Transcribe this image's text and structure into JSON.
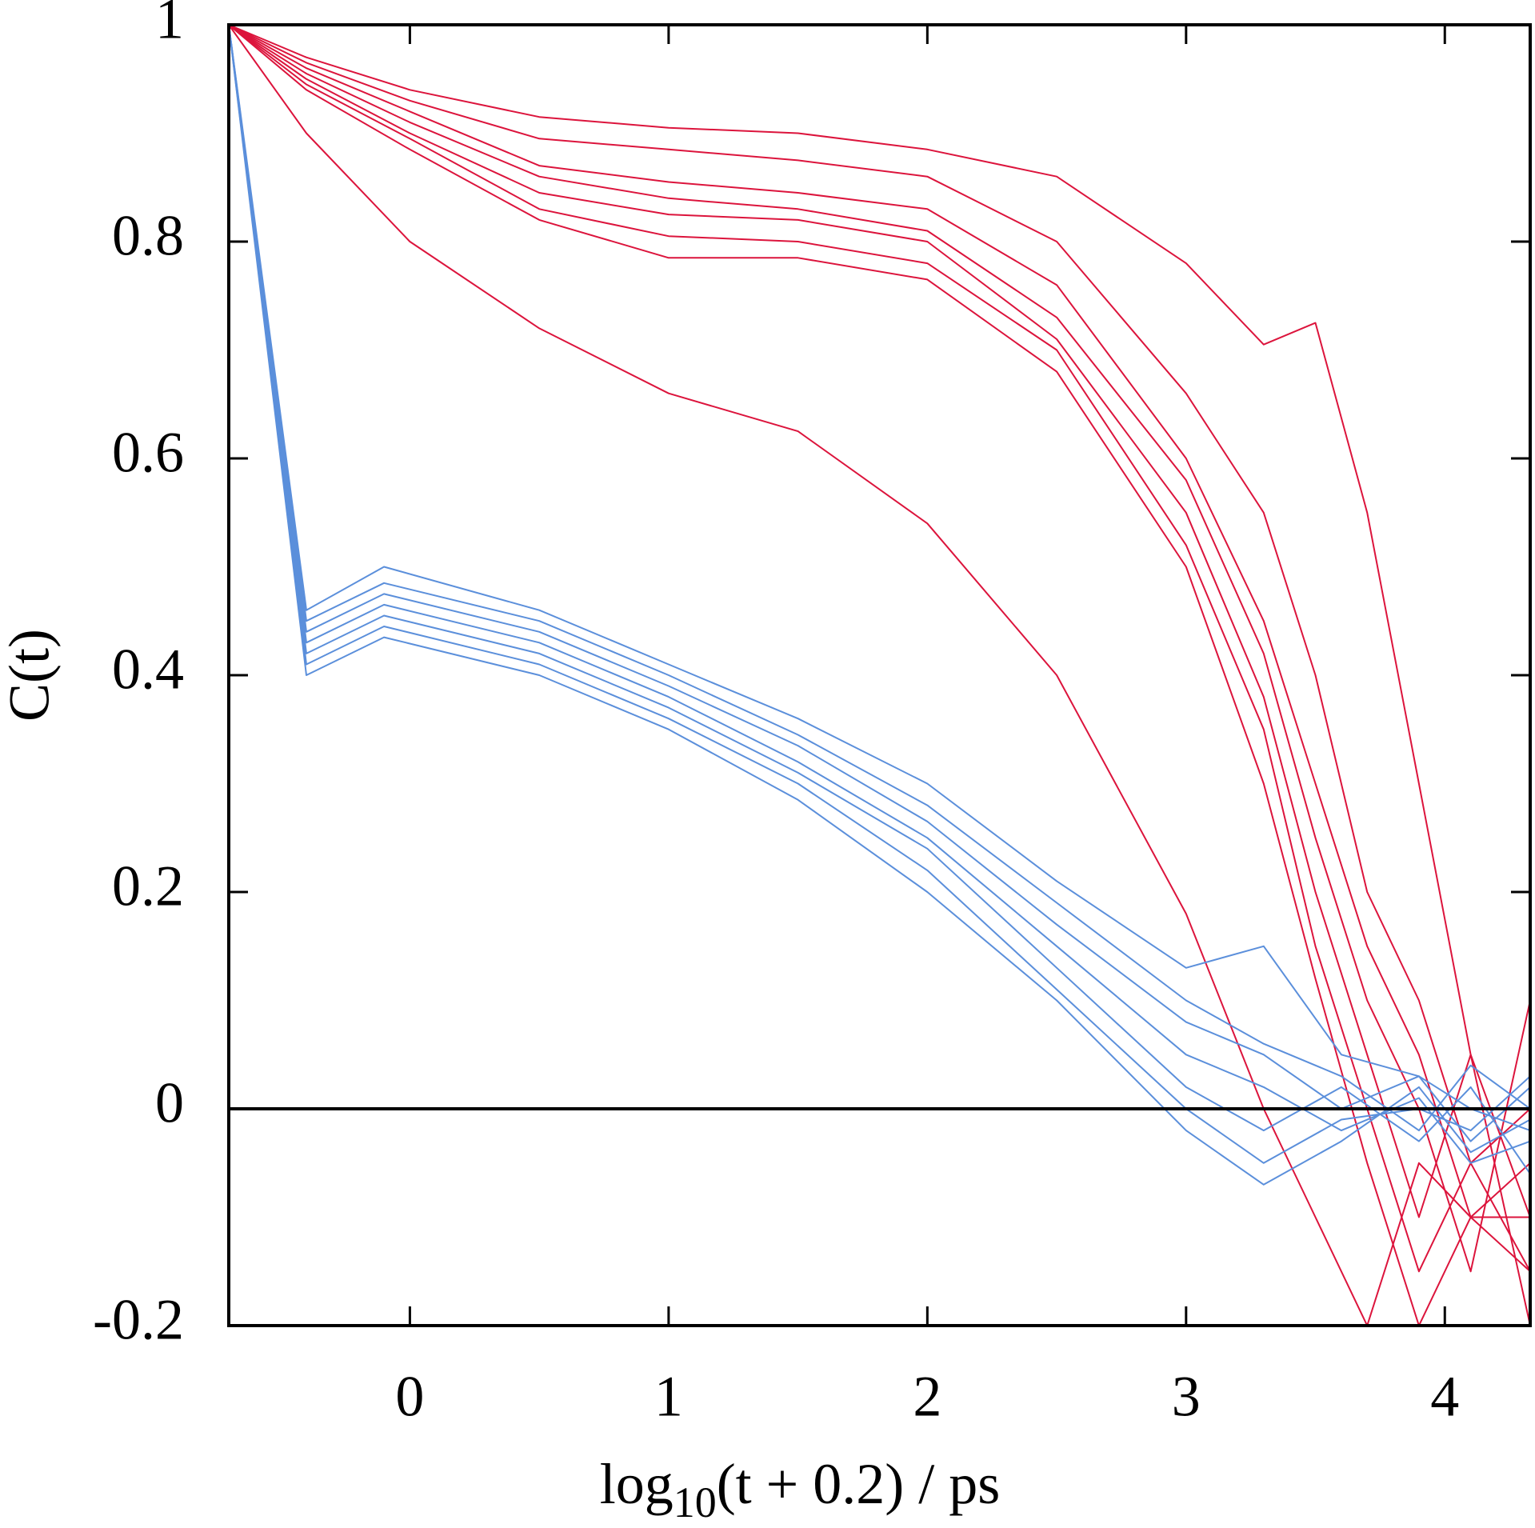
{
  "chart_data": {
    "type": "line",
    "xlabel": {
      "base": "log",
      "subscript": "10",
      "rest": "(t + 0.2) / ps"
    },
    "ylabel": "C(t)",
    "xlim": [
      -0.7,
      4.33
    ],
    "xticks": [
      0,
      1,
      2,
      3,
      4
    ],
    "ylim": [
      -0.2,
      1
    ],
    "yticks": [
      1,
      0.8,
      0.6,
      0.4,
      0.2,
      0,
      -0.2
    ],
    "zero_line": true,
    "series": [
      {
        "color": "#dc143c",
        "x": [
          -0.7,
          -0.4,
          0,
          0.5,
          1,
          1.5,
          2,
          2.5,
          3,
          3.3,
          3.5,
          3.7,
          3.9,
          4.1,
          4.33
        ],
        "values": [
          1,
          0.97,
          0.94,
          0.915,
          0.905,
          0.9,
          0.885,
          0.86,
          0.78,
          0.705,
          0.725,
          0.55,
          0.3,
          0.05,
          -0.1
        ]
      },
      {
        "color": "#dc143c",
        "x": [
          -0.7,
          -0.4,
          0,
          0.5,
          1,
          1.5,
          2,
          2.5,
          3,
          3.3,
          3.5,
          3.7,
          3.9,
          4.1,
          4.33
        ],
        "values": [
          1,
          0.965,
          0.93,
          0.895,
          0.885,
          0.875,
          0.86,
          0.8,
          0.66,
          0.55,
          0.4,
          0.2,
          0.1,
          -0.05,
          -0.15
        ]
      },
      {
        "color": "#dc143c",
        "x": [
          -0.7,
          -0.4,
          0,
          0.5,
          1,
          1.5,
          2,
          2.5,
          3,
          3.3,
          3.5,
          3.7,
          3.9,
          4.1,
          4.33
        ],
        "values": [
          1,
          0.96,
          0.92,
          0.87,
          0.855,
          0.845,
          0.83,
          0.76,
          0.6,
          0.45,
          0.3,
          0.15,
          0.05,
          -0.1,
          -0.05
        ]
      },
      {
        "color": "#dc143c",
        "x": [
          -0.7,
          -0.4,
          0,
          0.5,
          1,
          1.5,
          2,
          2.5,
          3,
          3.3,
          3.5,
          3.7,
          3.9,
          4.1,
          4.33
        ],
        "values": [
          1,
          0.955,
          0.91,
          0.86,
          0.84,
          0.83,
          0.81,
          0.73,
          0.58,
          0.42,
          0.25,
          0.1,
          0,
          -0.15,
          0.1
        ]
      },
      {
        "color": "#dc143c",
        "x": [
          -0.7,
          -0.4,
          0,
          0.5,
          1,
          1.5,
          2,
          2.5,
          3,
          3.3,
          3.5,
          3.7,
          3.9,
          4.1,
          4.33
        ],
        "values": [
          1,
          0.95,
          0.9,
          0.845,
          0.825,
          0.82,
          0.8,
          0.71,
          0.55,
          0.38,
          0.2,
          0.05,
          -0.1,
          0.05,
          -0.2
        ]
      },
      {
        "color": "#dc143c",
        "x": [
          -0.7,
          -0.4,
          0,
          0.5,
          1,
          1.5,
          2,
          2.5,
          3,
          3.3,
          3.5,
          3.7,
          3.9,
          4.1,
          4.33
        ],
        "values": [
          1,
          0.945,
          0.895,
          0.83,
          0.805,
          0.8,
          0.78,
          0.7,
          0.52,
          0.35,
          0.15,
          0,
          -0.15,
          -0.05,
          0
        ]
      },
      {
        "color": "#dc143c",
        "x": [
          -0.7,
          -0.4,
          0,
          0.5,
          1,
          1.5,
          2,
          2.5,
          3,
          3.3,
          3.5,
          3.7,
          3.9,
          4.1,
          4.33
        ],
        "values": [
          1,
          0.94,
          0.885,
          0.82,
          0.785,
          0.785,
          0.765,
          0.68,
          0.5,
          0.3,
          0.12,
          -0.05,
          -0.2,
          -0.1,
          -0.15
        ]
      },
      {
        "color": "#dc143c",
        "x": [
          -0.7,
          -0.4,
          0,
          0.5,
          1,
          1.5,
          2,
          2.5,
          3,
          3.3,
          3.5,
          3.7,
          3.9,
          4.1,
          4.33
        ],
        "values": [
          1,
          0.9,
          0.8,
          0.72,
          0.66,
          0.625,
          0.54,
          0.4,
          0.18,
          0,
          -0.1,
          -0.2,
          -0.05,
          -0.1,
          -0.1
        ]
      },
      {
        "color": "#5b8fdb",
        "x": [
          -0.7,
          -0.4,
          -0.1,
          0.5,
          1,
          1.5,
          2,
          2.5,
          3,
          3.3,
          3.6,
          3.9,
          4.1,
          4.33
        ],
        "values": [
          1,
          0.46,
          0.5,
          0.46,
          0.41,
          0.36,
          0.3,
          0.21,
          0.13,
          0.15,
          0.05,
          0.03,
          0,
          -0.02
        ]
      },
      {
        "color": "#5b8fdb",
        "x": [
          -0.7,
          -0.4,
          -0.1,
          0.5,
          1,
          1.5,
          2,
          2.5,
          3,
          3.3,
          3.6,
          3.9,
          4.1,
          4.33
        ],
        "values": [
          1,
          0.45,
          0.485,
          0.45,
          0.4,
          0.345,
          0.28,
          0.19,
          0.1,
          0.06,
          0.03,
          -0.02,
          0.04,
          0
        ]
      },
      {
        "color": "#5b8fdb",
        "x": [
          -0.7,
          -0.4,
          -0.1,
          0.5,
          1,
          1.5,
          2,
          2.5,
          3,
          3.3,
          3.6,
          3.9,
          4.1,
          4.33
        ],
        "values": [
          1,
          0.44,
          0.475,
          0.44,
          0.39,
          0.335,
          0.265,
          0.17,
          0.08,
          0.05,
          0,
          0.03,
          -0.03,
          0.02
        ]
      },
      {
        "color": "#5b8fdb",
        "x": [
          -0.7,
          -0.4,
          -0.1,
          0.5,
          1,
          1.5,
          2,
          2.5,
          3,
          3.3,
          3.6,
          3.9,
          4.1,
          4.33
        ],
        "values": [
          1,
          0.43,
          0.465,
          0.43,
          0.38,
          0.32,
          0.25,
          0.15,
          0.05,
          0.02,
          -0.02,
          0.01,
          -0.05,
          -0.03
        ]
      },
      {
        "color": "#5b8fdb",
        "x": [
          -0.7,
          -0.4,
          -0.1,
          0.5,
          1,
          1.5,
          2,
          2.5,
          3,
          3.3,
          3.6,
          3.9,
          4.1,
          4.33
        ],
        "values": [
          1,
          0.42,
          0.455,
          0.42,
          0.37,
          0.31,
          0.24,
          0.13,
          0.02,
          -0.02,
          0.02,
          -0.03,
          0.02,
          -0.06
        ]
      },
      {
        "color": "#5b8fdb",
        "x": [
          -0.7,
          -0.4,
          -0.1,
          0.5,
          1,
          1.5,
          2,
          2.5,
          3,
          3.3,
          3.6,
          3.9,
          4.1,
          4.33
        ],
        "values": [
          1,
          0.41,
          0.445,
          0.41,
          0.36,
          0.3,
          0.22,
          0.11,
          0,
          -0.05,
          -0.01,
          0,
          -0.02,
          0.03
        ]
      },
      {
        "color": "#5b8fdb",
        "x": [
          -0.7,
          -0.4,
          -0.1,
          0.5,
          1,
          1.5,
          2,
          2.5,
          3,
          3.3,
          3.6,
          3.9,
          4.1,
          4.33
        ],
        "values": [
          1,
          0.4,
          0.435,
          0.4,
          0.35,
          0.285,
          0.2,
          0.1,
          -0.02,
          -0.07,
          -0.03,
          0.02,
          -0.04,
          -0.01
        ]
      }
    ]
  }
}
